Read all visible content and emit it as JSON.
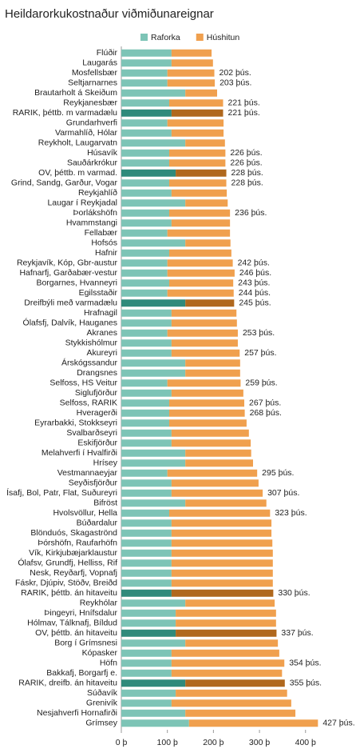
{
  "chart_data": {
    "type": "stacked_hbar",
    "title": "Heildarorkukostnaður viðmiðunareignar",
    "categories": [
      "Flúðir",
      "Laugarás",
      "Mosfellsbær",
      "Seltjarnarnes",
      "Brautarholt á Skeiðum",
      "Reykjanesbær",
      "RARIK, þéttb. m varmadælu",
      "Grundarhverfi",
      "Varmahlíð, Hólar",
      "Reykholt, Laugarvatn",
      "Húsavík",
      "Sauðárkrókur",
      "OV, þéttb. m varmad.",
      "Grind, Sandg, Garður, Vogar",
      "Reykjahlíð",
      "Laugar í Reykjadal",
      "Þorlákshöfn",
      "Hvammstangi",
      "Fellabær",
      "Hofsós",
      "Hafnir",
      "Reykjavík, Kóp, Gbr-austur",
      "Hafnarfj, Garðabær-vestur",
      "Borgarnes, Hvanneyri",
      "Egilsstaðir",
      "Dreifbýli með varmadælu",
      "Hrafnagil",
      "Ólafsfj, Dalvík, Hauganes",
      "Akranes",
      "Stykkishólmur",
      "Akureyri",
      "Árskógssandur",
      "Drangsnes",
      "Selfoss, HS Veitur",
      "Siglufjörður",
      "Selfoss, RARIK",
      "Hveragerði",
      "Eyrarbakki, Stokkseyri",
      "Svalbarðseyri",
      "Eskifjörður",
      "Melahverfi í Hvalfirði",
      "Hrísey",
      "Vestmannaeyjar",
      "Seyðisfjörður",
      "Ísafj, Bol, Patr, Flat, Suðureyri",
      "Bifröst",
      "Hvolsvöllur, Hella",
      "Búðardalur",
      "Blönduós, Skagaströnd",
      "Þórshöfn, Raufarhöfn",
      "Vík, Kirkjubæjarklaustur",
      "Ólafsv, Grundfj, Helliss, Rif",
      "Nesk, Reyðarfj, Vopnafj",
      "Fáskr, Djúpiv, Stöðv, Breiðd",
      "RARIK, þéttb. án hitaveitu",
      "Reykhólar",
      "Þingeyri, Hnífsdalur",
      "Hólmav, Tálknafj, Bíldud",
      "OV, þéttb. án hitaveitu",
      "Borg í Grímsnesi",
      "Kópasker",
      "Höfn",
      "Bakkafj, Borgarfj e.",
      "RARIK, dreifb. án hitaveitu",
      "Súðavík",
      "Grenivík",
      "Nesjahverfi Hornafirði",
      "Grímsey"
    ],
    "series": [
      {
        "name": "Raforka",
        "color": "#7dc4b6",
        "highlight_color": "#2f8a7b",
        "values": [
          109,
          109,
          100,
          100,
          139,
          104,
          109,
          100,
          109,
          139,
          104,
          104,
          118,
          104,
          109,
          139,
          104,
          109,
          100,
          139,
          104,
          100,
          100,
          104,
          100,
          139,
          109,
          109,
          100,
          109,
          109,
          139,
          139,
          100,
          109,
          104,
          104,
          104,
          109,
          109,
          139,
          139,
          100,
          109,
          109,
          139,
          104,
          109,
          109,
          109,
          109,
          109,
          109,
          109,
          109,
          139,
          118,
          118,
          118,
          139,
          109,
          109,
          109,
          139,
          118,
          109,
          139,
          147
        ]
      },
      {
        "name": "Húshitun",
        "color": "#f0a04e",
        "highlight_color": "#b0681d",
        "values": [
          87,
          90,
          102,
          103,
          69,
          117,
          112,
          122,
          113,
          86,
          122,
          122,
          110,
          124,
          120,
          92,
          132,
          127,
          136,
          98,
          135,
          142,
          146,
          139,
          144,
          106,
          141,
          142,
          153,
          144,
          148,
          119,
          119,
          159,
          156,
          163,
          164,
          168,
          168,
          172,
          143,
          147,
          195,
          189,
          198,
          176,
          219,
          217,
          217,
          219,
          220,
          220,
          220,
          220,
          221,
          194,
          218,
          218,
          219,
          201,
          234,
          245,
          240,
          216,
          242,
          260,
          239,
          280
        ]
      }
    ],
    "highlighted": [
      false,
      false,
      false,
      false,
      false,
      false,
      true,
      false,
      false,
      false,
      false,
      false,
      true,
      false,
      false,
      false,
      false,
      false,
      false,
      false,
      false,
      false,
      false,
      false,
      false,
      true,
      false,
      false,
      false,
      false,
      false,
      false,
      false,
      false,
      false,
      false,
      false,
      false,
      false,
      false,
      false,
      false,
      false,
      false,
      false,
      false,
      false,
      false,
      false,
      false,
      false,
      false,
      false,
      false,
      true,
      false,
      false,
      false,
      true,
      false,
      false,
      false,
      false,
      true,
      false,
      false,
      false,
      false
    ],
    "totals": [
      null,
      null,
      202,
      203,
      null,
      221,
      221,
      null,
      null,
      null,
      226,
      226,
      228,
      228,
      null,
      null,
      236,
      null,
      null,
      null,
      null,
      242,
      246,
      243,
      244,
      245,
      null,
      null,
      253,
      null,
      257,
      null,
      null,
      259,
      null,
      267,
      268,
      null,
      null,
      null,
      null,
      null,
      295,
      null,
      307,
      null,
      323,
      null,
      null,
      null,
      null,
      null,
      null,
      null,
      330,
      null,
      null,
      null,
      337,
      null,
      null,
      354,
      null,
      355,
      null,
      null,
      null,
      427
    ],
    "total_labels": [
      null,
      null,
      "202 þús.",
      "203 þús.",
      null,
      "221 þús.",
      "221 þús.",
      null,
      null,
      null,
      "226 þús.",
      "226 þús.",
      "228 þús.",
      "228 þús.",
      null,
      null,
      "236 þús.",
      null,
      null,
      null,
      null,
      "242 þús.",
      "246 þús.",
      "243 þús.",
      "244 þús.",
      "245 þús.",
      null,
      null,
      "253 þús.",
      null,
      "257 þús.",
      null,
      null,
      "259 þús.",
      null,
      "267 þús.",
      "268 þús.",
      null,
      null,
      null,
      null,
      null,
      "295 þús.",
      null,
      "307 þús.",
      null,
      "323 þús.",
      null,
      null,
      null,
      null,
      null,
      null,
      null,
      "330 þús.",
      null,
      null,
      null,
      "337 þús.",
      null,
      null,
      "354 þús.",
      null,
      "355 þús.",
      null,
      null,
      null,
      "427 þús."
    ],
    "xlim": [
      0,
      450
    ],
    "xticks": [
      {
        "value": 0,
        "label": "0 þ"
      },
      {
        "value": 100,
        "label": "100 þ"
      },
      {
        "value": 200,
        "label": "200 þ"
      },
      {
        "value": 300,
        "label": "300 þ"
      },
      {
        "value": 400,
        "label": "400 þ"
      }
    ]
  }
}
